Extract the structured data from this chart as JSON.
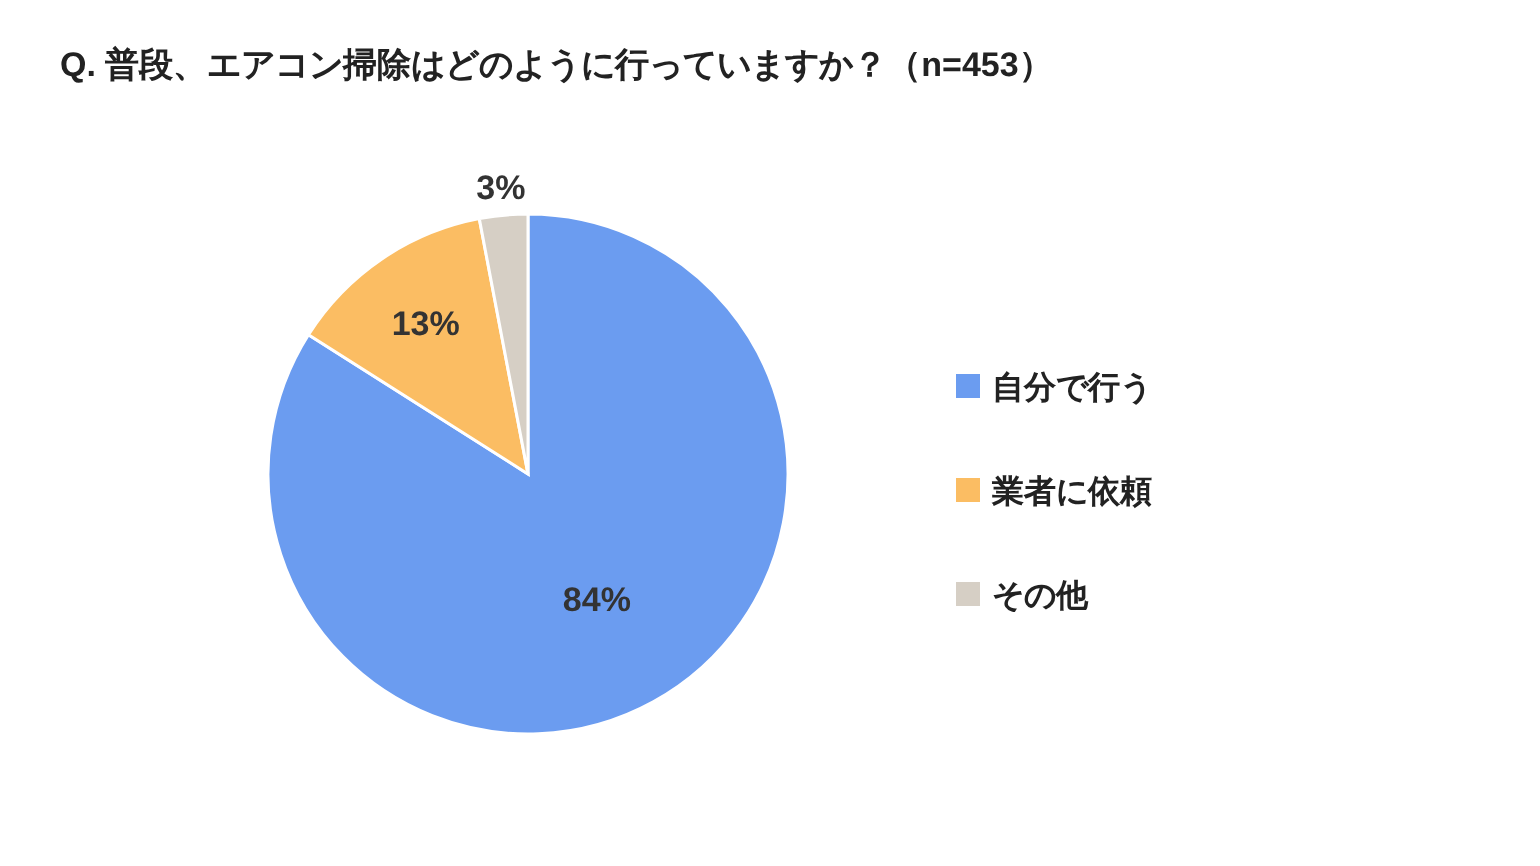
{
  "chart_data": {
    "type": "pie",
    "title": "Q. 普段、エアコン掃除はどのように行っていますか？（n=453）",
    "categories": [
      "自分で行う",
      "業者に依頼",
      "その他"
    ],
    "values": [
      84,
      13,
      3
    ],
    "colors": [
      "#6b9cf0",
      "#fbbd63",
      "#d6cfc5"
    ],
    "value_labels": [
      "84%",
      "13%",
      "3%"
    ],
    "legend": "right"
  }
}
